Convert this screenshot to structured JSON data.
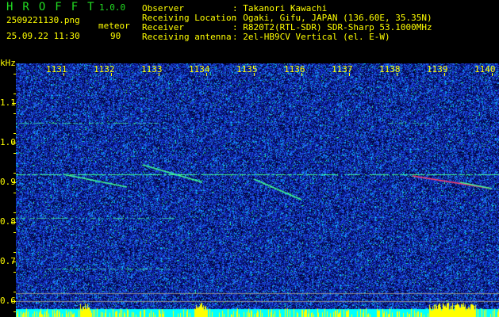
{
  "header": {
    "app_title": "HROFFT",
    "version": "1.0.0",
    "filename": "2509221130.png",
    "datetime": "25.09.22 11:30",
    "meteor_label": "meteor",
    "meteor_count": "90",
    "info": [
      {
        "label": "Observer",
        "value": ": Takanori Kawachi"
      },
      {
        "label": "Receiving Location",
        "value": ": Ogaki, Gifu, JAPAN (136.60E, 35.35N)"
      },
      {
        "label": "Receiver",
        "value": ": R820T2(RTL-SDR) SDR-Sharp 53.1000MHz"
      },
      {
        "label": "Receiving antenna",
        "value": ": 2el-HB9CV Vertical (el. E-W)"
      }
    ]
  },
  "chart_data": {
    "type": "heatmap",
    "title": "",
    "ylabel": "kHz",
    "xlabel": "",
    "x_tick_labels": [
      "1131",
      "1132",
      "1133",
      "1134",
      "1135",
      "1136",
      "1137",
      "1138",
      "1139",
      "1140"
    ],
    "y_tick_labels": [
      "1.1",
      "1.0",
      "0.9",
      "0.8",
      "0.7",
      "0.6"
    ],
    "ylim": [
      0.56,
      1.2
    ],
    "colormap": [
      "#000033",
      "#0a1fb0",
      "#2a5cff",
      "#00ffff",
      "#00ff66",
      "#ff3060"
    ],
    "carrier_khz": 0.92,
    "colors": {
      "axis_text": "#ffff00",
      "title": "#22dd22",
      "background": "#000000",
      "activity_bar": "#ffff00",
      "activity_base": "#00ffff"
    }
  }
}
